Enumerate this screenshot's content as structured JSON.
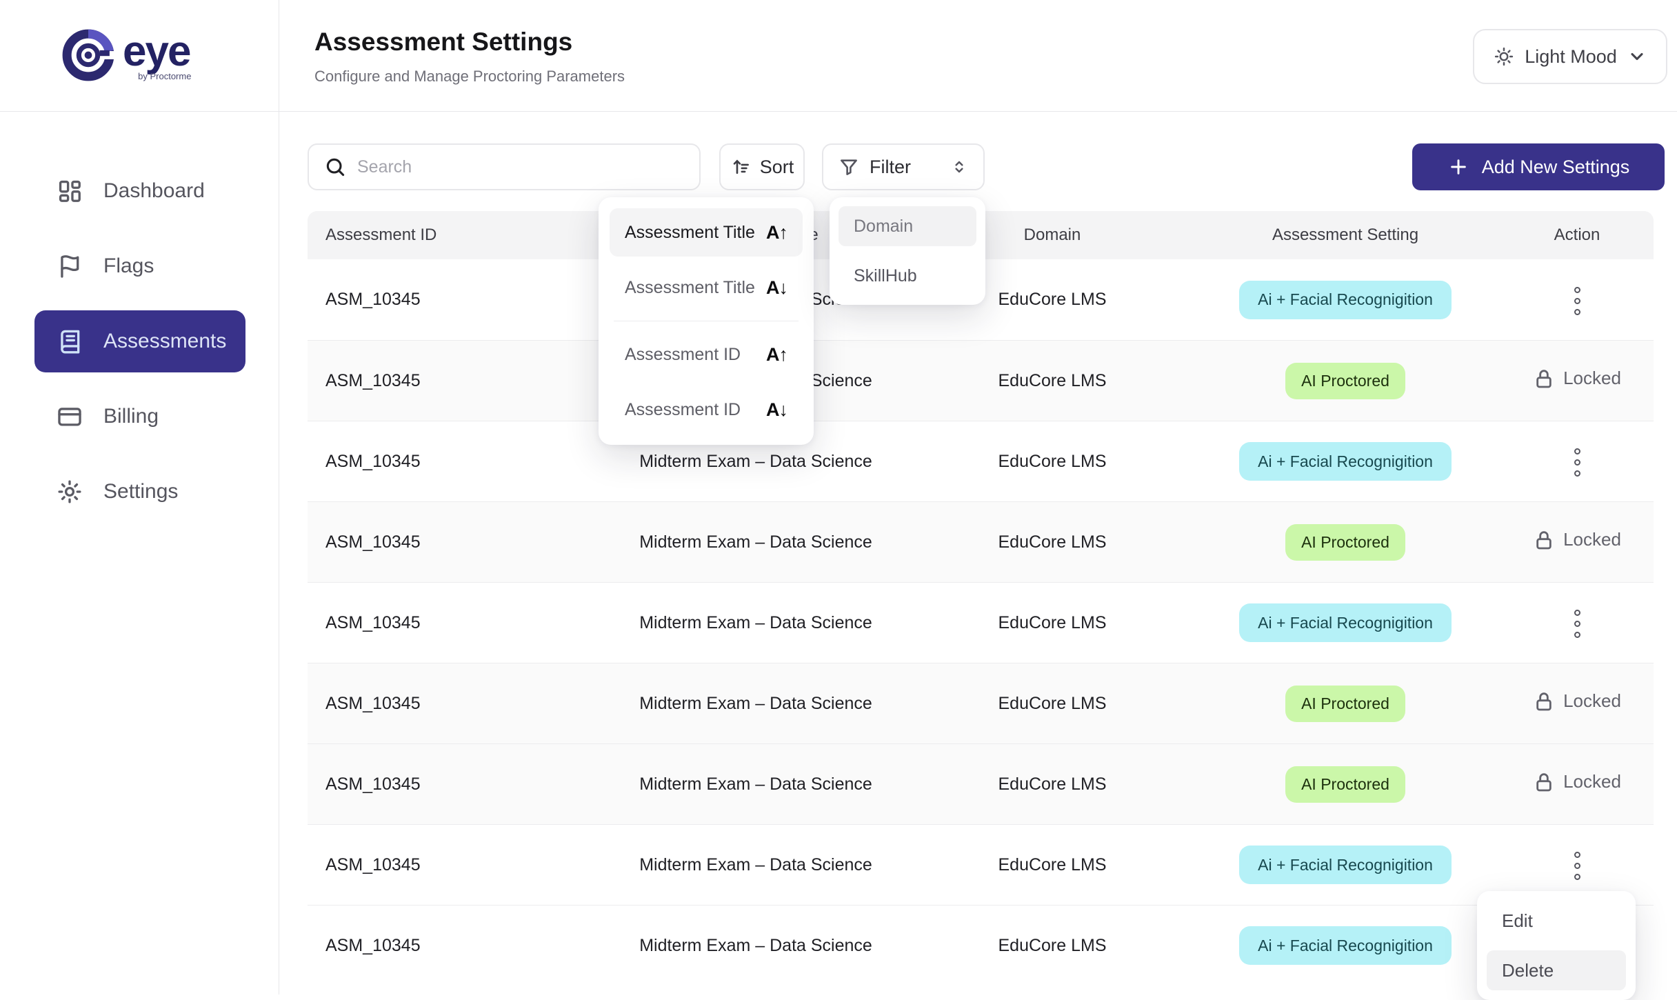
{
  "brand": {
    "name": "eye",
    "tagline": "by Proctorme",
    "logo_icon": "eye-logo-icon"
  },
  "header": {
    "title": "Assessment Settings",
    "subtitle": "Configure and Manage Proctoring Parameters",
    "theme_toggle_label": "Light Mood"
  },
  "sidebar": {
    "items": [
      {
        "label": "Dashboard",
        "icon": "dashboard-icon",
        "active": false
      },
      {
        "label": "Flags",
        "icon": "flag-icon",
        "active": false
      },
      {
        "label": "Assessments",
        "icon": "book-icon",
        "active": true
      },
      {
        "label": "Billing",
        "icon": "card-icon",
        "active": false
      },
      {
        "label": "Settings",
        "icon": "gear-icon",
        "active": false
      }
    ]
  },
  "toolbar": {
    "search_placeholder": "Search",
    "sort_label": "Sort",
    "filter_label": "Filter",
    "add_button_label": "Add New Settings"
  },
  "sort_menu": {
    "items": [
      {
        "label": "Assessment Title",
        "direction": "asc",
        "highlighted": true,
        "divider_after": false
      },
      {
        "label": "Assessment Title",
        "direction": "desc",
        "highlighted": false,
        "divider_after": true
      },
      {
        "label": "Assessment ID",
        "direction": "asc",
        "highlighted": false,
        "divider_after": false
      },
      {
        "label": "Assessment ID",
        "direction": "desc",
        "highlighted": false,
        "divider_after": false
      }
    ]
  },
  "filter_menu": {
    "items": [
      {
        "label": "Domain",
        "highlighted": true
      },
      {
        "label": "SkillHub",
        "highlighted": false
      }
    ]
  },
  "table": {
    "columns": [
      "Assessment ID",
      "Assessment Title",
      "Domain",
      "Assessment Setting",
      "Action"
    ],
    "locked_label": "Locked",
    "rows": [
      {
        "id": "ASM_10345",
        "title": "Midterm Exam – Data Science",
        "domain": "EduCore LMS",
        "setting": "Ai + Facial Recognigition",
        "setting_type": "facial",
        "action": "menu"
      },
      {
        "id": "ASM_10345",
        "title": "Midterm Exam – Data Science",
        "domain": "EduCore LMS",
        "setting": "AI Proctored",
        "setting_type": "proctored",
        "action": "locked"
      },
      {
        "id": "ASM_10345",
        "title": "Midterm Exam – Data Science",
        "domain": "EduCore LMS",
        "setting": "Ai + Facial Recognigition",
        "setting_type": "facial",
        "action": "menu"
      },
      {
        "id": "ASM_10345",
        "title": "Midterm Exam – Data Science",
        "domain": "EduCore LMS",
        "setting": "AI Proctored",
        "setting_type": "proctored",
        "action": "locked"
      },
      {
        "id": "ASM_10345",
        "title": "Midterm Exam – Data Science",
        "domain": "EduCore LMS",
        "setting": "Ai + Facial Recognigition",
        "setting_type": "facial",
        "action": "menu"
      },
      {
        "id": "ASM_10345",
        "title": "Midterm Exam – Data Science",
        "domain": "EduCore LMS",
        "setting": "AI Proctored",
        "setting_type": "proctored",
        "action": "locked"
      },
      {
        "id": "ASM_10345",
        "title": "Midterm Exam – Data Science",
        "domain": "EduCore LMS",
        "setting": "AI Proctored",
        "setting_type": "proctored",
        "action": "locked"
      },
      {
        "id": "ASM_10345",
        "title": "Midterm Exam – Data Science",
        "domain": "EduCore LMS",
        "setting": "Ai + Facial Recognigition",
        "setting_type": "facial",
        "action": "menu"
      },
      {
        "id": "ASM_10345",
        "title": "Midterm Exam – Data Science",
        "domain": "EduCore LMS",
        "setting": "Ai + Facial Recognigition",
        "setting_type": "facial",
        "action": "menu"
      }
    ]
  },
  "context_menu": {
    "items": [
      {
        "label": "Edit",
        "highlighted": false
      },
      {
        "label": "Delete",
        "highlighted": true
      }
    ]
  },
  "colors": {
    "primary": "#39328a",
    "active_nav_text": "#dde4f6",
    "badge_facial_bg": "#b5f1f7",
    "badge_facial_text": "#17484e",
    "badge_proctored_bg": "#cbf7a9",
    "badge_proctored_text": "#1c300d",
    "border": "#e7e7ea",
    "row_alt_bg": "#fafafa"
  }
}
